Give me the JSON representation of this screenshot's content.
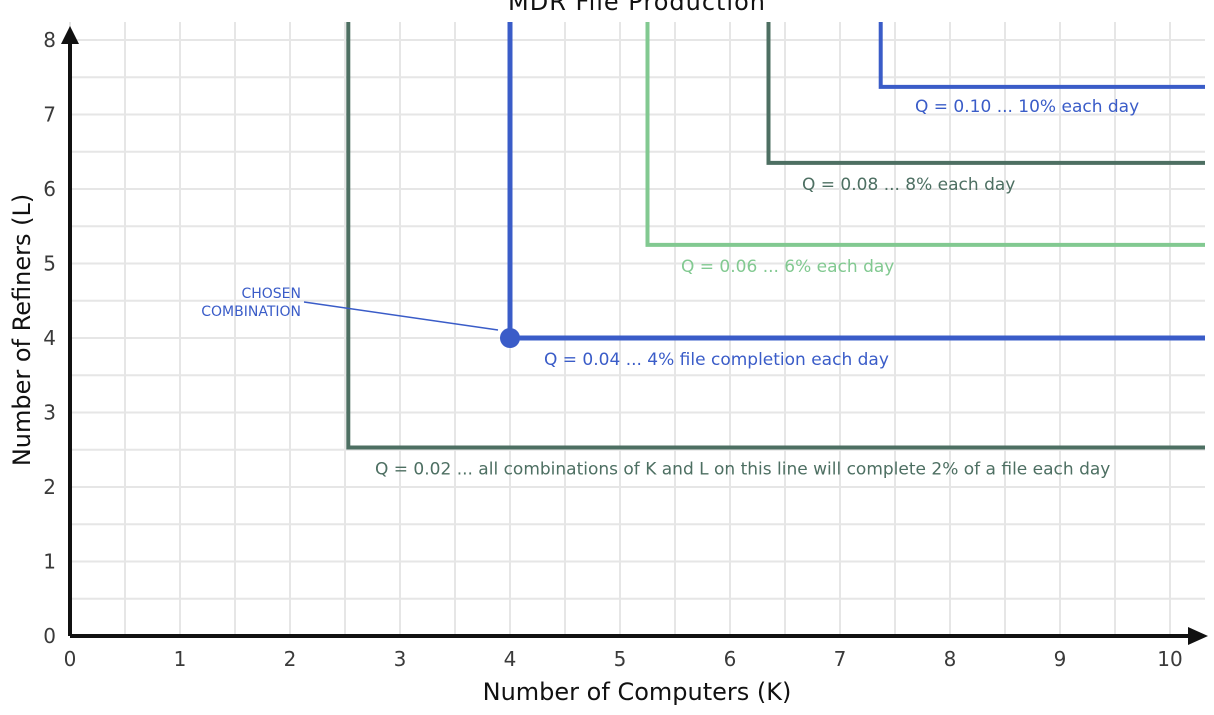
{
  "chart_data": {
    "type": "line",
    "title": "MDR File Production",
    "xlabel": "Number of Computers (K)",
    "ylabel": "Number of Refiners (L)",
    "xlim": [
      0,
      10
    ],
    "ylim": [
      0,
      8
    ],
    "x_ticks": [
      "0",
      "1",
      "2",
      "3",
      "4",
      "5",
      "6",
      "7",
      "8",
      "9",
      "10"
    ],
    "y_ticks": [
      "0",
      "1",
      "2",
      "3",
      "4",
      "5",
      "6",
      "7",
      "8"
    ],
    "grid": true,
    "series": [
      {
        "label": "Q = 0.02 ... all combinations of K and L on this line will complete 2% of a file each day",
        "color": "#4d6f62",
        "corner": {
          "K": 2.53,
          "L": 2.53
        }
      },
      {
        "label": "Q = 0.04 ... 4% file completion each day",
        "color": "#3a5cc8",
        "corner": {
          "K": 4.0,
          "L": 4.0
        }
      },
      {
        "label": "Q = 0.06 ... 6% each day",
        "color": "#82c991",
        "corner": {
          "K": 5.25,
          "L": 5.25
        }
      },
      {
        "label": "Q = 0.08 ... 8% each day",
        "color": "#4d6f62",
        "corner": {
          "K": 6.35,
          "L": 6.35
        }
      },
      {
        "label": "Q = 0.10 ... 10% each day",
        "color": "#3a5cc8",
        "corner": {
          "K": 7.37,
          "L": 7.37
        }
      }
    ],
    "highlight_point": {
      "K": 4,
      "L": 4,
      "label_lines": [
        "chosen",
        "combination"
      ],
      "color": "#3a5cc8"
    }
  }
}
